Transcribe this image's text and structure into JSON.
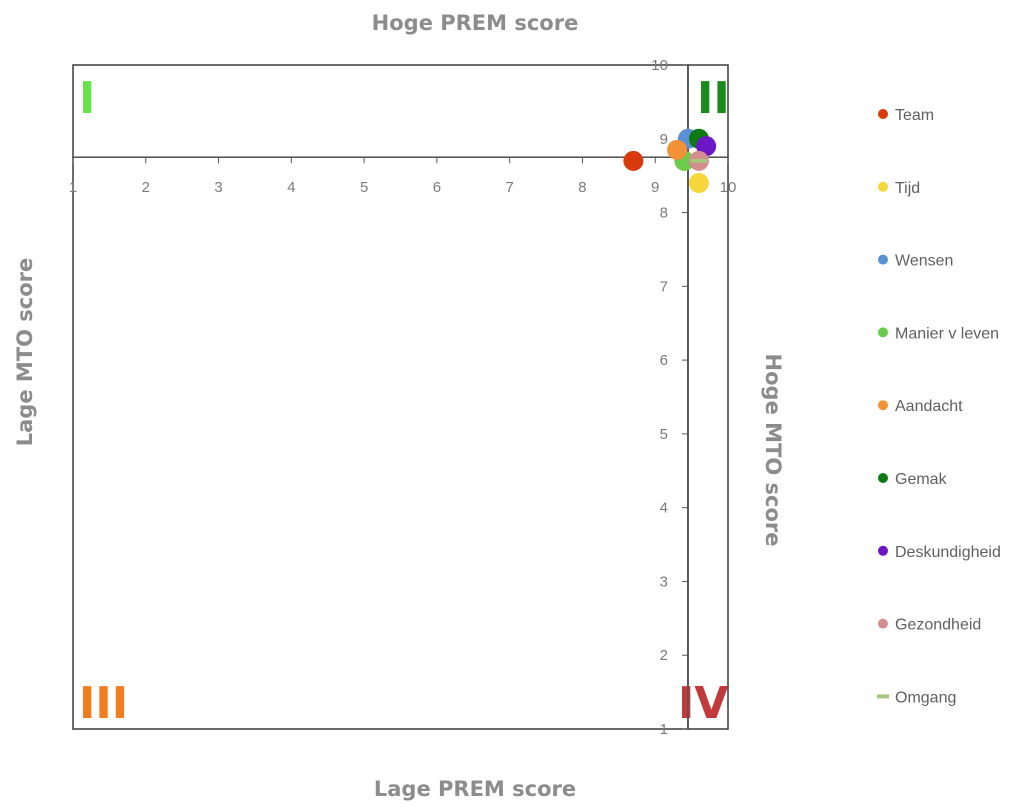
{
  "chart_data": {
    "type": "scatter",
    "title": "",
    "labels": {
      "top": "Hoge PREM score",
      "bottom": "Lage PREM score",
      "left": "Lage MTO score",
      "right": "Hoge MTO score"
    },
    "xlim": [
      1,
      10
    ],
    "ylim": [
      1,
      10
    ],
    "x_ticks": [
      1,
      2,
      3,
      4,
      5,
      6,
      7,
      8,
      9,
      10
    ],
    "y_ticks": [
      1,
      2,
      3,
      4,
      5,
      6,
      7,
      8,
      9,
      10
    ],
    "x_axis_crosses_y": 8.75,
    "y_axis_crosses_x": 9.45,
    "grid": false,
    "legend_position": "right",
    "quadrants": [
      {
        "label": "I",
        "color": "#66e34a"
      },
      {
        "label": "II",
        "color": "#1a8a1a"
      },
      {
        "label": "III",
        "color": "#f07d1e"
      },
      {
        "label": "IV",
        "color": "#c0393b"
      }
    ],
    "series": [
      {
        "name": "Team",
        "color": "#d93a0b",
        "marker": "circle",
        "points": [
          [
            8.7,
            8.7
          ]
        ]
      },
      {
        "name": "Tijd",
        "color": "#f5d63b",
        "marker": "circle",
        "points": [
          [
            9.6,
            8.4
          ]
        ]
      },
      {
        "name": "Wensen",
        "color": "#5b8fd6",
        "marker": "circle",
        "points": [
          [
            9.45,
            9.0
          ]
        ]
      },
      {
        "name": "Manier v leven",
        "color": "#6ccb4a",
        "marker": "circle",
        "points": [
          [
            9.4,
            8.7
          ]
        ]
      },
      {
        "name": "Aandacht",
        "color": "#f39138",
        "marker": "circle",
        "points": [
          [
            9.3,
            8.85
          ]
        ]
      },
      {
        "name": "Gemak",
        "color": "#0d7a14",
        "marker": "circle",
        "points": [
          [
            9.6,
            9.0
          ]
        ]
      },
      {
        "name": "Deskundigheid",
        "color": "#6b17c7",
        "marker": "circle",
        "points": [
          [
            9.7,
            8.9
          ]
        ]
      },
      {
        "name": "Gezondheid",
        "color": "#d48e8e",
        "marker": "circle",
        "points": [
          [
            9.6,
            8.7
          ]
        ]
      },
      {
        "name": "Omgang",
        "color": "#a7c87c",
        "marker": "dash",
        "points": [
          [
            9.6,
            8.7
          ]
        ]
      }
    ]
  }
}
